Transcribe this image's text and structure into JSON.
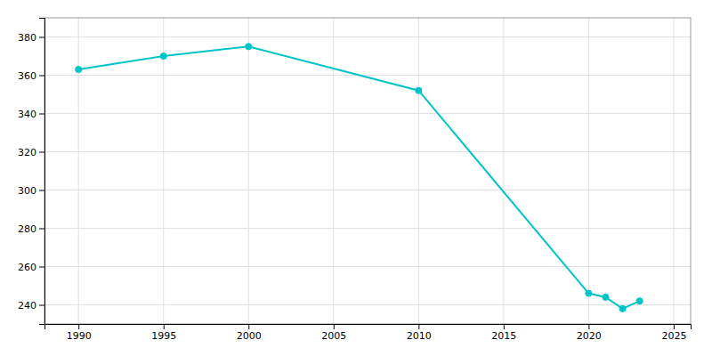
{
  "chart_data": {
    "type": "line",
    "x": [
      1990,
      1995,
      2000,
      2010,
      2020,
      2021,
      2022,
      2023
    ],
    "values": [
      363,
      370,
      375,
      352,
      246,
      244,
      238,
      242
    ],
    "color": "#00C5C8",
    "marker": "circle",
    "xlim": [
      1988,
      2026
    ],
    "ylim": [
      230,
      390
    ],
    "xticks": [
      1990,
      1995,
      2000,
      2005,
      2010,
      2015,
      2020,
      2025
    ],
    "yticks": [
      240,
      260,
      280,
      300,
      320,
      340,
      360,
      380
    ],
    "grid": true
  }
}
